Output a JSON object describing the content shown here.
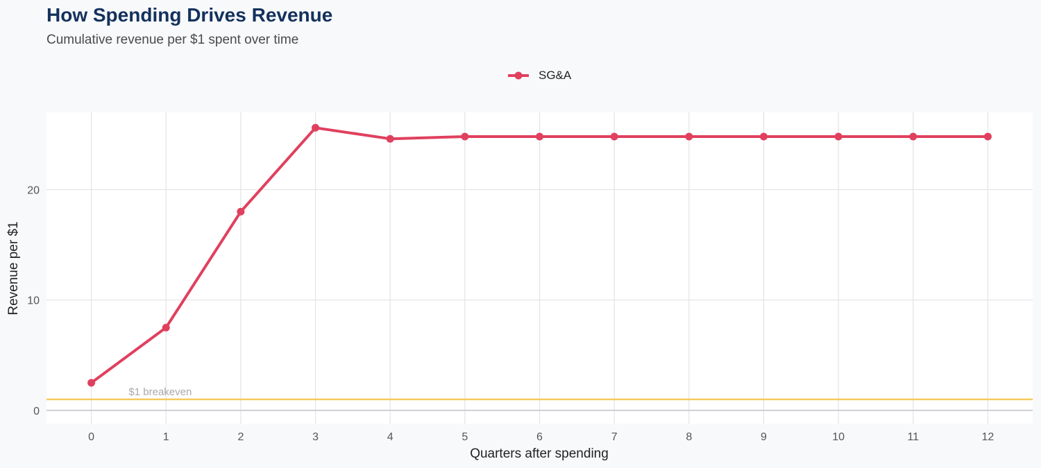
{
  "header": {
    "title": "How Spending Drives Revenue",
    "subtitle": "Cumulative revenue per $1 spent over time"
  },
  "chart_data": {
    "type": "line",
    "x": [
      0,
      1,
      2,
      3,
      4,
      5,
      6,
      7,
      8,
      9,
      10,
      11,
      12
    ],
    "series": [
      {
        "name": "SG&A",
        "color": "#e0405e",
        "values": [
          2.5,
          7.5,
          18.0,
          25.6,
          24.6,
          24.8,
          24.8,
          24.8,
          24.8,
          24.8,
          24.8,
          24.8,
          24.8
        ]
      }
    ],
    "xlabel": "Quarters after spending",
    "ylabel": "Revenue per $1",
    "xlim": [
      -0.6,
      12.6
    ],
    "ylim": [
      -1.2,
      27.0
    ],
    "yticks": [
      0,
      10,
      20
    ],
    "xticks": [
      0,
      1,
      2,
      3,
      4,
      5,
      6,
      7,
      8,
      9,
      10,
      11,
      12
    ],
    "grid": true,
    "legend_position": "top-center",
    "reference_line": {
      "value": 1,
      "label": "$1 breakeven",
      "color": "#f5c95a"
    },
    "zero_line_color": "#cfcfd4"
  }
}
